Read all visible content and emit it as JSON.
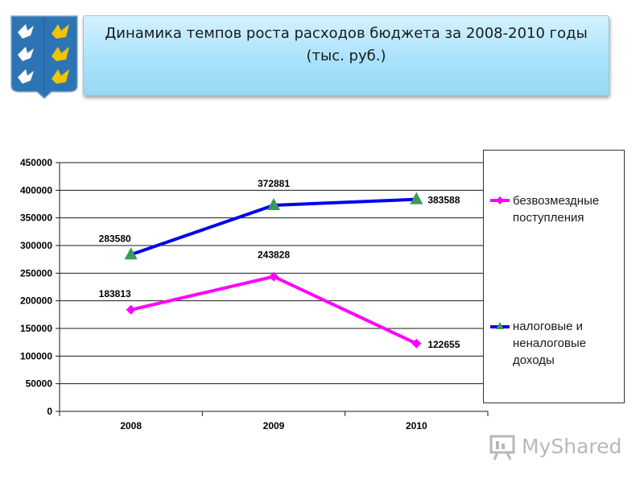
{
  "title": {
    "line1": "Динамика темпов роста расходов бюджета за 2008-2010 годы",
    "line2": "(тыс. руб.)"
  },
  "watermark": {
    "text": "MyShared"
  },
  "colors": {
    "series1": "#ff00ff",
    "series2": "#0000ee",
    "triangle": "#3a9a5a",
    "titleBg": "#a9e2fb"
  },
  "chart_data": {
    "type": "line",
    "categories": [
      "2008",
      "2009",
      "2010"
    ],
    "y_ticks": [
      "0",
      "50000",
      "100000",
      "150000",
      "200000",
      "250000",
      "300000",
      "350000",
      "400000",
      "450000"
    ],
    "ylim": [
      0,
      450000
    ],
    "grid": true,
    "legend_position": "right",
    "series": [
      {
        "name": "безвозмездные поступления",
        "values": [
          183813,
          243828,
          122655
        ],
        "labels": [
          "183813",
          "243828",
          "122655"
        ],
        "marker": "diamond"
      },
      {
        "name": "налоговые и неналоговые доходы",
        "values": [
          283580,
          372881,
          383588
        ],
        "labels": [
          "283580",
          "372881",
          "383588"
        ],
        "marker": "triangle"
      }
    ]
  }
}
